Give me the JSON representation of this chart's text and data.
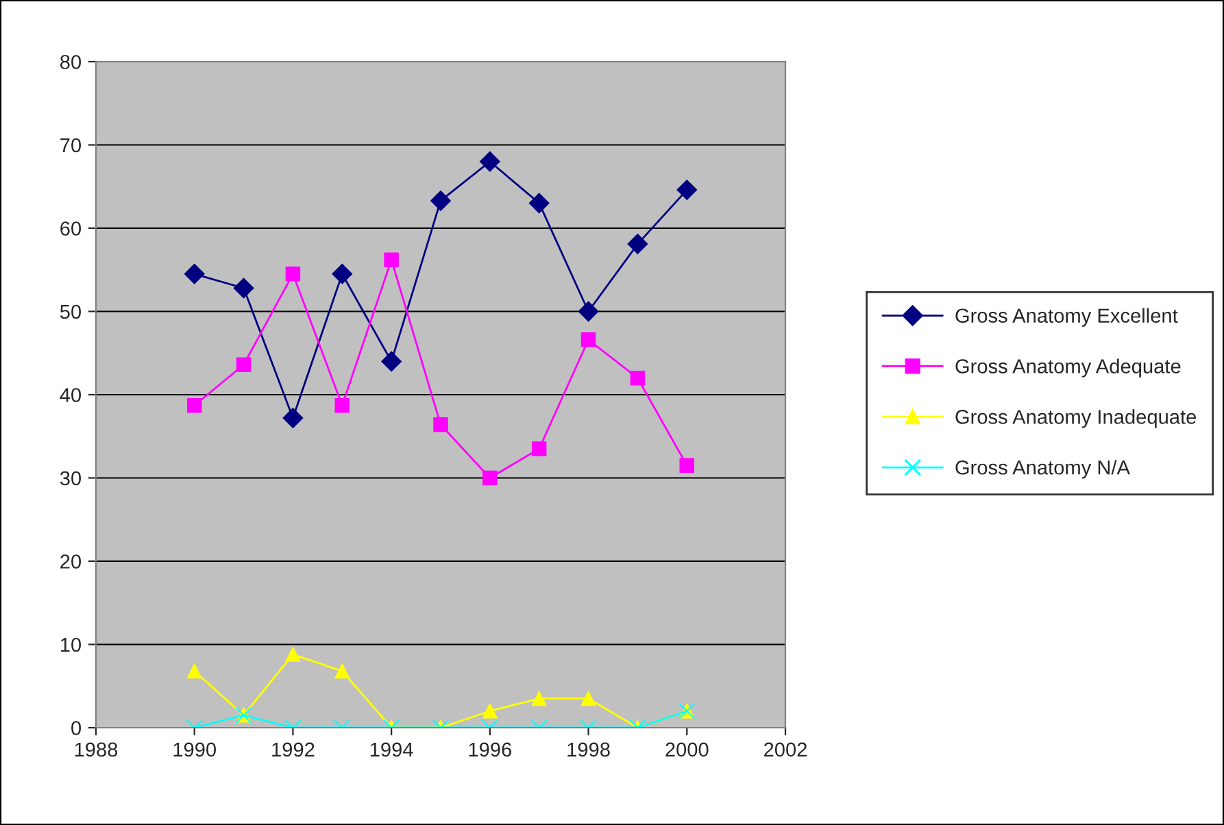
{
  "chart_data": {
    "type": "line",
    "x": [
      1990,
      1991,
      1992,
      1993,
      1994,
      1995,
      1996,
      1997,
      1998,
      1999,
      2000
    ],
    "series": [
      {
        "name": "Gross Anatomy Excellent",
        "color": "#000080",
        "marker": "diamond",
        "values": [
          54.5,
          52.8,
          37.2,
          54.5,
          44,
          63.3,
          68,
          63,
          50,
          58.1,
          64.6
        ]
      },
      {
        "name": "Gross Anatomy Adequate",
        "color": "#ff00ff",
        "marker": "square",
        "values": [
          38.7,
          43.6,
          54.5,
          38.7,
          56.2,
          36.4,
          30,
          33.5,
          46.6,
          42,
          31.5
        ]
      },
      {
        "name": "Gross Anatomy Inadequate",
        "color": "#ffff00",
        "marker": "triangle",
        "values": [
          6.8,
          1.5,
          8.8,
          6.8,
          0,
          0,
          2,
          3.5,
          3.5,
          0,
          2
        ]
      },
      {
        "name": "Gross Anatomy N/A",
        "color": "#00ffff",
        "marker": "cross",
        "values": [
          0,
          1.5,
          0,
          0,
          0,
          0,
          0,
          0,
          0,
          0,
          2
        ]
      }
    ],
    "xlim": [
      1988,
      2002
    ],
    "xticks": [
      1988,
      1990,
      1992,
      1994,
      1996,
      1998,
      2000,
      2002
    ],
    "ylim": [
      0,
      80
    ],
    "yticks": [
      0,
      10,
      20,
      30,
      40,
      50,
      60,
      70,
      80
    ],
    "grid": "y",
    "legend": "right",
    "line_style": "solid"
  }
}
